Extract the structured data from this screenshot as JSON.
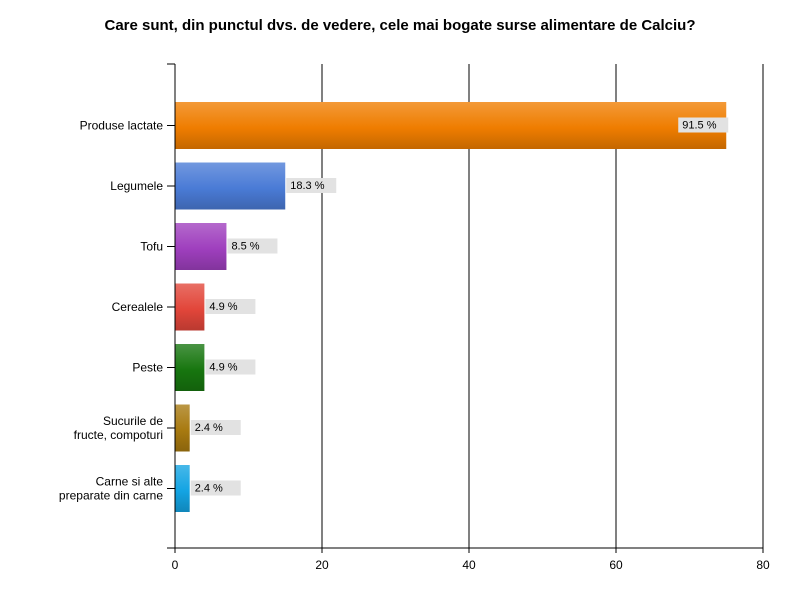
{
  "chart_data": {
    "type": "bar",
    "orientation": "horizontal",
    "title": "Care sunt, din punctul dvs. de vedere, cele mai bogate surse alimentare de Calciu?",
    "categories": [
      [
        "Produse lactate"
      ],
      [
        "Legumele"
      ],
      [
        "Tofu"
      ],
      [
        "Cerealele"
      ],
      [
        "Peste"
      ],
      [
        "Sucurile de",
        "fructe, compoturi"
      ],
      [
        "Carne si alte",
        "preparate din carne"
      ]
    ],
    "values": [
      75,
      15,
      7,
      4,
      4,
      2,
      2
    ],
    "data_labels": [
      "91.5 %",
      "18.3 %",
      "8.5 %",
      "4.9 %",
      "4.9 %",
      "2.4 %",
      "2.4 %"
    ],
    "colors": [
      "#ef7d00",
      "#4a7bd6",
      "#9f3fbe",
      "#e2463a",
      "#17760f",
      "#a87a10",
      "#13a4e3"
    ],
    "xlim": [
      0,
      80
    ],
    "xticks": [
      0,
      20,
      40,
      60,
      80
    ],
    "grid": true,
    "legend": "none"
  }
}
